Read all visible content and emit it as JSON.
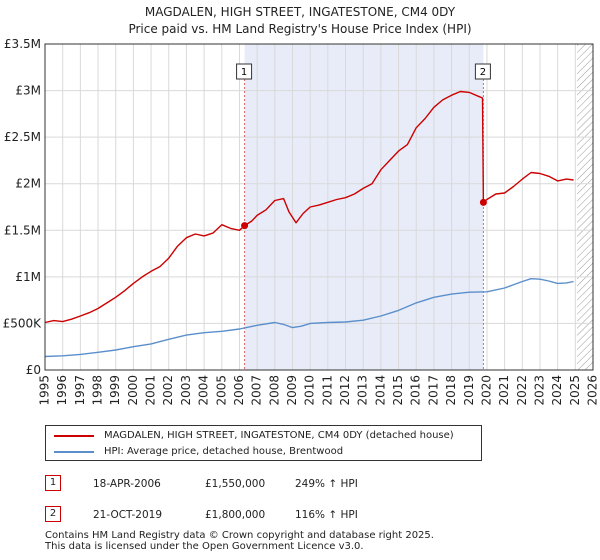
{
  "chart_data": {
    "type": "line",
    "title": "MAGDALEN, HIGH STREET, INGATESTONE, CM4 0DY",
    "subtitle": "Price paid vs. HM Land Registry's House Price Index (HPI)",
    "x_ticks": [
      "1995",
      "1996",
      "1997",
      "1998",
      "1999",
      "2000",
      "2001",
      "2002",
      "2003",
      "2004",
      "2005",
      "2006",
      "2007",
      "2008",
      "2009",
      "2010",
      "2011",
      "2012",
      "2013",
      "2014",
      "2015",
      "2016",
      "2017",
      "2018",
      "2019",
      "2020",
      "2021",
      "2022",
      "2023",
      "2024",
      "2025",
      "2026"
    ],
    "y_ticks": [
      {
        "value": 0,
        "label": "£0"
      },
      {
        "value": 500000,
        "label": "£500K"
      },
      {
        "value": 1000000,
        "label": "£1M"
      },
      {
        "value": 1500000,
        "label": "£1.5M"
      },
      {
        "value": 2000000,
        "label": "£2M"
      },
      {
        "value": 2500000,
        "label": "£2.5M"
      },
      {
        "value": 3000000,
        "label": "£3M"
      },
      {
        "value": 3500000,
        "label": "£3.5M"
      }
    ],
    "xlim": [
      1995,
      2026
    ],
    "ylim": [
      0,
      3500000
    ],
    "shaded_period": [
      2006.29,
      2019.8
    ],
    "hatched_after": 2025.1,
    "series": [
      {
        "name": "MAGDALEN, HIGH STREET, INGATESTONE, CM4 0DY (detached house)",
        "color": "#cc0000",
        "points": [
          [
            1995.0,
            510000
          ],
          [
            1995.5,
            530000
          ],
          [
            1996.0,
            520000
          ],
          [
            1996.5,
            545000
          ],
          [
            1997.0,
            580000
          ],
          [
            1997.5,
            615000
          ],
          [
            1998.0,
            660000
          ],
          [
            1998.5,
            720000
          ],
          [
            1999.0,
            780000
          ],
          [
            1999.5,
            850000
          ],
          [
            2000.0,
            930000
          ],
          [
            2000.5,
            1000000
          ],
          [
            2001.0,
            1060000
          ],
          [
            2001.5,
            1110000
          ],
          [
            2002.0,
            1200000
          ],
          [
            2002.5,
            1330000
          ],
          [
            2003.0,
            1420000
          ],
          [
            2003.5,
            1460000
          ],
          [
            2004.0,
            1440000
          ],
          [
            2004.5,
            1470000
          ],
          [
            2005.0,
            1560000
          ],
          [
            2005.5,
            1520000
          ],
          [
            2006.0,
            1500000
          ],
          [
            2006.29,
            1550000
          ],
          [
            2006.7,
            1600000
          ],
          [
            2007.0,
            1660000
          ],
          [
            2007.5,
            1720000
          ],
          [
            2008.0,
            1820000
          ],
          [
            2008.5,
            1840000
          ],
          [
            2008.8,
            1700000
          ],
          [
            2009.2,
            1580000
          ],
          [
            2009.6,
            1680000
          ],
          [
            2010.0,
            1750000
          ],
          [
            2010.5,
            1770000
          ],
          [
            2011.0,
            1800000
          ],
          [
            2011.5,
            1830000
          ],
          [
            2012.0,
            1850000
          ],
          [
            2012.5,
            1890000
          ],
          [
            2013.0,
            1950000
          ],
          [
            2013.5,
            2000000
          ],
          [
            2014.0,
            2150000
          ],
          [
            2014.5,
            2250000
          ],
          [
            2015.0,
            2350000
          ],
          [
            2015.5,
            2420000
          ],
          [
            2016.0,
            2600000
          ],
          [
            2016.5,
            2700000
          ],
          [
            2017.0,
            2820000
          ],
          [
            2017.5,
            2900000
          ],
          [
            2018.0,
            2950000
          ],
          [
            2018.5,
            2990000
          ],
          [
            2019.0,
            2980000
          ],
          [
            2019.5,
            2940000
          ],
          [
            2019.75,
            2920000
          ],
          [
            2019.8,
            1800000
          ],
          [
            2020.0,
            1830000
          ],
          [
            2020.5,
            1890000
          ],
          [
            2021.0,
            1900000
          ],
          [
            2021.5,
            1970000
          ],
          [
            2022.0,
            2050000
          ],
          [
            2022.5,
            2120000
          ],
          [
            2023.0,
            2110000
          ],
          [
            2023.5,
            2080000
          ],
          [
            2024.0,
            2030000
          ],
          [
            2024.5,
            2050000
          ],
          [
            2024.9,
            2040000
          ]
        ]
      },
      {
        "name": "HPI: Average price, detached house, Brentwood",
        "color": "#5b8fcc",
        "points": [
          [
            1995.0,
            145000
          ],
          [
            1996.0,
            152000
          ],
          [
            1997.0,
            168000
          ],
          [
            1998.0,
            190000
          ],
          [
            1999.0,
            215000
          ],
          [
            2000.0,
            250000
          ],
          [
            2001.0,
            280000
          ],
          [
            2002.0,
            330000
          ],
          [
            2003.0,
            375000
          ],
          [
            2004.0,
            400000
          ],
          [
            2005.0,
            415000
          ],
          [
            2006.0,
            440000
          ],
          [
            2007.0,
            480000
          ],
          [
            2008.0,
            510000
          ],
          [
            2008.5,
            490000
          ],
          [
            2009.0,
            455000
          ],
          [
            2009.5,
            470000
          ],
          [
            2010.0,
            500000
          ],
          [
            2011.0,
            510000
          ],
          [
            2012.0,
            515000
          ],
          [
            2013.0,
            535000
          ],
          [
            2014.0,
            580000
          ],
          [
            2015.0,
            640000
          ],
          [
            2016.0,
            720000
          ],
          [
            2017.0,
            780000
          ],
          [
            2018.0,
            815000
          ],
          [
            2019.0,
            835000
          ],
          [
            2020.0,
            840000
          ],
          [
            2021.0,
            880000
          ],
          [
            2022.0,
            950000
          ],
          [
            2022.5,
            980000
          ],
          [
            2023.0,
            975000
          ],
          [
            2023.5,
            955000
          ],
          [
            2024.0,
            930000
          ],
          [
            2024.5,
            935000
          ],
          [
            2024.9,
            950000
          ]
        ]
      }
    ],
    "sales": [
      {
        "marker": "1",
        "x": 2006.29,
        "y": 1550000,
        "date": "18-APR-2006",
        "price": "£1,550,000",
        "hpi": "249% ↑ HPI"
      },
      {
        "marker": "2",
        "x": 2019.8,
        "y": 1800000,
        "date": "21-OCT-2019",
        "price": "£1,800,000",
        "hpi": "116% ↑ HPI"
      }
    ]
  },
  "legend": {
    "red_label": "MAGDALEN, HIGH STREET, INGATESTONE, CM4 0DY (detached house)",
    "blue_label": "HPI: Average price, detached house, Brentwood"
  },
  "footer": {
    "line1": "Contains HM Land Registry data © Crown copyright and database right 2025.",
    "line2": "This data is licensed under the Open Government Licence v3.0."
  },
  "colors": {
    "property": "#cc0000",
    "hpi": "#5b8fcc",
    "shade": "#e8ecf8",
    "grid": "#d9d9d9"
  }
}
